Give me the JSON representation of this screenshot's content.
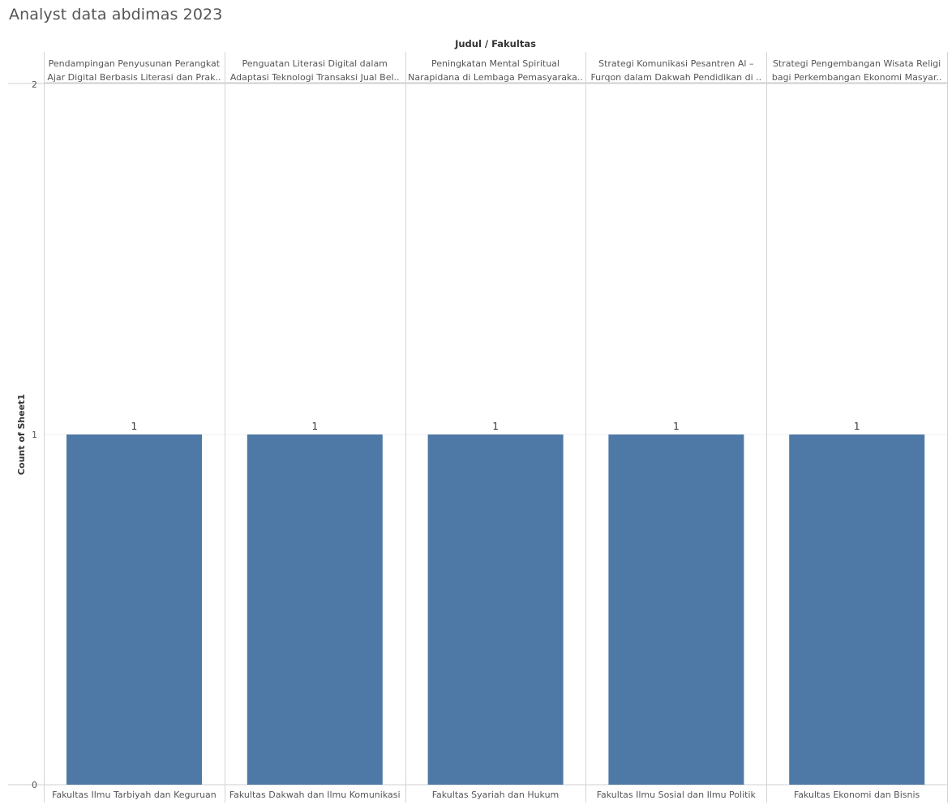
{
  "page": {
    "title": "Analyst data abdimas 2023"
  },
  "chart_data": {
    "type": "bar",
    "header_title": "Judul / Fakultas",
    "ylabel": "Count of Sheet1",
    "ylim": [
      0,
      2
    ],
    "yticks": [
      "0",
      "1",
      "2"
    ],
    "bar_color": "#4e79a7",
    "columns": [
      {
        "judul_line1": "Pendampingan Penyusunan Perangkat",
        "judul_line2": "Ajar Digital Berbasis Literasi dan Prak..",
        "fakultas": "Fakultas Ilmu Tarbiyah dan Keguruan",
        "value": 1,
        "label": "1"
      },
      {
        "judul_line1": "Penguatan Literasi Digital dalam",
        "judul_line2": "Adaptasi Teknologi Transaksi Jual Bel..",
        "fakultas": "Fakultas Dakwah dan Ilmu Komunikasi",
        "value": 1,
        "label": "1"
      },
      {
        "judul_line1": "Peningkatan Mental Spiritual",
        "judul_line2": "Narapidana di Lembaga Pemasyaraka..",
        "fakultas": "Fakultas Syariah dan Hukum",
        "value": 1,
        "label": "1"
      },
      {
        "judul_line1": "Strategi Komunikasi Pesantren Al –",
        "judul_line2": "Furqon dalam Dakwah Pendidikan di ..",
        "fakultas": "Fakultas Ilmu Sosial dan Ilmu Politik",
        "value": 1,
        "label": "1"
      },
      {
        "judul_line1": "Strategi Pengembangan Wisata Religi",
        "judul_line2": "bagi Perkembangan Ekonomi Masyar..",
        "fakultas": "Fakultas Ekonomi dan Bisnis",
        "value": 1,
        "label": "1"
      }
    ]
  }
}
